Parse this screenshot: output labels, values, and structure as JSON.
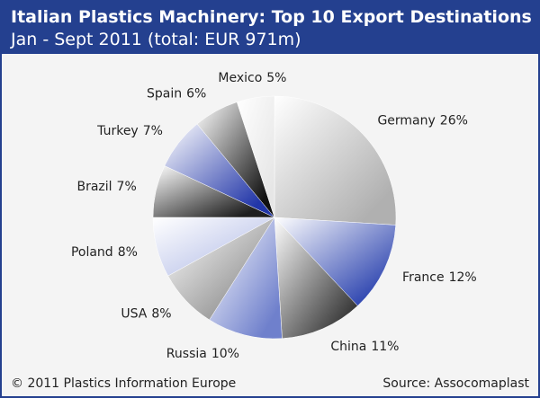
{
  "chart_data": {
    "type": "pie",
    "title": "Italian Plastics Machinery: Top 10 Export Destinations",
    "subtitle": "Jan - Sept 2011 (total: EUR 971m)",
    "categories": [
      "Germany",
      "France",
      "China",
      "Russia",
      "USA",
      "Poland",
      "Brazil",
      "Turkey",
      "Spain",
      "Mexico"
    ],
    "values": [
      26,
      12,
      11,
      10,
      8,
      8,
      7,
      7,
      6,
      5
    ],
    "value_labels": [
      "26%",
      "12%",
      "11%",
      "10%",
      "8%",
      "8%",
      "7%",
      "7%",
      "6%",
      "5%"
    ],
    "colors": [
      "#b0b0b0",
      "#2f46b0",
      "#3a3a3a",
      "#6f80cc",
      "#8a8a8a",
      "#b7c0e8",
      "#1e1e1e",
      "#2236a8",
      "#111111",
      "#e6e6e6"
    ],
    "footer_left": "© 2011 Plastics Information Europe",
    "footer_right": "Source: Assocomaplast"
  }
}
